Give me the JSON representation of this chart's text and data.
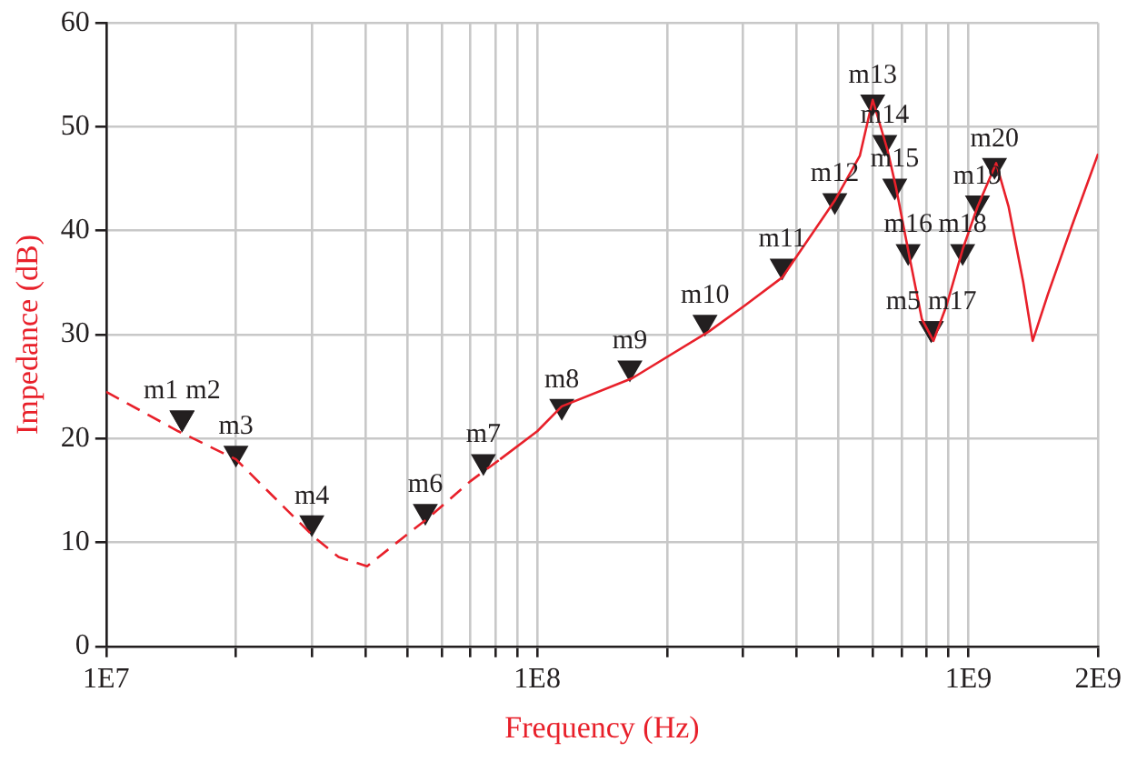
{
  "chart_data": {
    "type": "line",
    "xlabel": "Frequency (Hz)",
    "ylabel": "Impedance (dB)",
    "log": "x",
    "xlim": [
      10000000,
      2000000000
    ],
    "xticks": [
      {
        "value": 10000000,
        "label": "1E7"
      },
      {
        "value": 20000000,
        "label": null
      },
      {
        "value": 30000000,
        "label": null
      },
      {
        "value": 40000000,
        "label": null
      },
      {
        "value": 50000000,
        "label": null
      },
      {
        "value": 60000000,
        "label": null
      },
      {
        "value": 70000000,
        "label": null
      },
      {
        "value": 80000000,
        "label": null
      },
      {
        "value": 90000000,
        "label": null
      },
      {
        "value": 100000000,
        "label": "1E8"
      },
      {
        "value": 200000000,
        "label": null
      },
      {
        "value": 300000000,
        "label": null
      },
      {
        "value": 400000000,
        "label": null
      },
      {
        "value": 500000000,
        "label": null
      },
      {
        "value": 600000000,
        "label": null
      },
      {
        "value": 700000000,
        "label": null
      },
      {
        "value": 800000000,
        "label": null
      },
      {
        "value": 900000000,
        "label": null
      },
      {
        "value": 1000000000,
        "label": "1E9"
      },
      {
        "value": 2000000000,
        "label": "2E9"
      }
    ],
    "ylim": [
      0,
      60
    ],
    "yticks": [
      0,
      10,
      20,
      30,
      40,
      50,
      60
    ],
    "grid": true,
    "series": [
      {
        "color": "#e8202a",
        "line_style": "dashed",
        "x": [
          10000000,
          14700000,
          20000000,
          30400000,
          34600000,
          40300000,
          49300000,
          55700000,
          70000000,
          82000000
        ],
        "values": [
          24.5,
          20.7,
          18.0,
          10.5,
          8.6,
          7.7,
          10.6,
          12.3,
          15.9,
          18.0
        ]
      },
      {
        "color": "#e8202a",
        "line_style": "solid",
        "x": [
          82000000,
          100000000,
          114000000,
          166000000,
          250000000,
          303000000,
          370000000,
          490000000,
          560000000,
          600000000,
          650000000,
          680000000,
          730000000,
          780000000,
          830000000,
          890000000,
          970000000,
          1050000000,
          1160000000,
          1240000000,
          1340000000,
          1410000000,
          1530000000,
          1740000000,
          2000000000
        ],
        "values": [
          18.0,
          20.7,
          23.1,
          25.8,
          30.3,
          32.8,
          35.5,
          42.9,
          47.2,
          52.6,
          47.7,
          44.1,
          37.5,
          31.5,
          29.4,
          32.8,
          38.2,
          42.3,
          46.5,
          42.3,
          35.1,
          29.4,
          33.9,
          40.5,
          47.4
        ]
      },
      {
        "type": "scatter",
        "color": "#231f20",
        "marker": "triangle",
        "x": [
          15000000,
          15000000,
          20000000,
          30000000,
          820000000,
          55000000,
          75000000,
          114000000,
          164000000,
          245000000,
          370000000,
          490000000,
          600000000,
          640000000,
          675000000,
          725000000,
          820000000,
          970000000,
          1050000000,
          1150000000
        ],
        "values": [
          22,
          22,
          18.6,
          11.9,
          30.6,
          13.0,
          17.8,
          23.1,
          26.8,
          31.2,
          36.6,
          42.9,
          52.4,
          48.5,
          44.3,
          38.0,
          30.6,
          38.0,
          42.7,
          46.3
        ],
        "value_labels": [
          "m1",
          "m2",
          "m3",
          "m4",
          "m5",
          "m6",
          "m7",
          "m8",
          "m9",
          "m10",
          "m11",
          "m12",
          "m13",
          "m14",
          "m15",
          "m16",
          "m17",
          "m18",
          "m19",
          "m20"
        ]
      }
    ]
  }
}
